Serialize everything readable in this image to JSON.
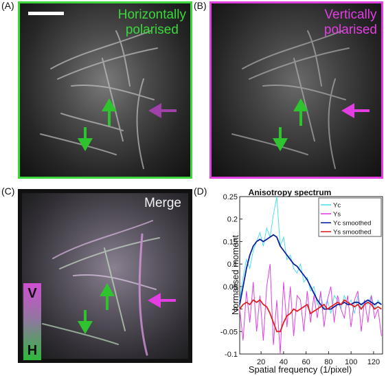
{
  "panels": {
    "a": {
      "label": "(A)",
      "title_line1": "Horizontally",
      "title_line2": "polarised",
      "border_color": "#3bd83b"
    },
    "b": {
      "label": "(B)",
      "title_line1": "Vertically",
      "title_line2": "polarised",
      "border_color": "#e23ee2"
    },
    "c": {
      "label": "(C)",
      "title": "Merge",
      "colorbar_top": "V",
      "colorbar_bottom": "H"
    },
    "d": {
      "label": "(D)"
    }
  },
  "colors": {
    "green_arrow": "#2fc42f",
    "magenta_arrow": "#e23ee2",
    "purple_arrow": "#a040a8"
  },
  "chart_data": {
    "type": "line",
    "title": "Anisotropy spectrum",
    "xlabel": "Spatial frequency (1/pixel)",
    "ylabel": "Normalised moment",
    "xlim": [
      1,
      128
    ],
    "ylim": [
      -0.1,
      0.25
    ],
    "xticks": [
      20,
      40,
      60,
      80,
      100,
      120
    ],
    "yticks": [
      -0.1,
      -0.05,
      0,
      0.05,
      0.1,
      0.15,
      0.2,
      0.25
    ],
    "legend_position": "top-right",
    "series": [
      {
        "name": "Yc",
        "color": "#4de0f0",
        "x": [
          1,
          4,
          7,
          10,
          13,
          16,
          19,
          22,
          25,
          28,
          31,
          34,
          37,
          40,
          43,
          46,
          49,
          52,
          55,
          58,
          61,
          64,
          67,
          70,
          73,
          76,
          79,
          82,
          85,
          88,
          91,
          94,
          97,
          100,
          103,
          106,
          109,
          112,
          115,
          118,
          121,
          124,
          127
        ],
        "y": [
          0.02,
          0.07,
          0.11,
          0.09,
          0.13,
          0.15,
          0.17,
          0.14,
          0.18,
          0.16,
          0.21,
          0.25,
          0.14,
          0.16,
          0.11,
          0.12,
          0.09,
          0.08,
          0.1,
          0.06,
          0.07,
          0.04,
          0.05,
          0.01,
          0.03,
          0.0,
          0.02,
          -0.01,
          0.03,
          0.02,
          0.0,
          0.03,
          0.01,
          0.02,
          -0.01,
          0.03,
          0.0,
          0.02,
          0.01,
          0.03,
          0.0,
          0.02,
          0.01
        ]
      },
      {
        "name": "Ys",
        "color": "#e040e0",
        "x": [
          1,
          4,
          7,
          10,
          13,
          16,
          19,
          22,
          25,
          28,
          31,
          34,
          37,
          40,
          43,
          46,
          49,
          52,
          55,
          58,
          61,
          64,
          67,
          70,
          73,
          76,
          79,
          82,
          85,
          88,
          91,
          94,
          97,
          100,
          103,
          106,
          109,
          112,
          115,
          118,
          121,
          124,
          127
        ],
        "y": [
          0.0,
          -0.07,
          0.04,
          -0.03,
          0.06,
          -0.05,
          0.03,
          -0.07,
          0.05,
          0.1,
          -0.08,
          0.02,
          -0.1,
          0.06,
          -0.04,
          0.05,
          -0.06,
          0.03,
          0.02,
          -0.05,
          0.04,
          -0.03,
          0.03,
          -0.02,
          0.04,
          -0.04,
          0.02,
          0.05,
          -0.03,
          0.03,
          0.0,
          -0.02,
          0.03,
          -0.04,
          0.02,
          0.04,
          -0.05,
          0.02,
          -0.03,
          0.03,
          -0.02,
          0.0,
          -0.06
        ]
      },
      {
        "name": "Yc smoothed",
        "color": "#0a1f9c",
        "x": [
          1,
          4,
          7,
          10,
          13,
          16,
          19,
          22,
          25,
          28,
          31,
          34,
          37,
          40,
          43,
          46,
          49,
          52,
          55,
          58,
          61,
          64,
          67,
          70,
          73,
          76,
          79,
          82,
          85,
          88,
          91,
          94,
          97,
          100,
          103,
          106,
          109,
          112,
          115,
          118,
          121,
          124,
          127
        ],
        "y": [
          0.01,
          0.05,
          0.09,
          0.12,
          0.14,
          0.15,
          0.155,
          0.15,
          0.155,
          0.16,
          0.165,
          0.16,
          0.14,
          0.13,
          0.12,
          0.11,
          0.1,
          0.095,
          0.085,
          0.075,
          0.065,
          0.05,
          0.035,
          0.02,
          0.01,
          0.0,
          0.0,
          0.0,
          0.005,
          0.01,
          0.01,
          0.015,
          0.01,
          0.01,
          0.015,
          0.015,
          0.01,
          0.015,
          0.02,
          0.015,
          0.01,
          0.015,
          0.01
        ]
      },
      {
        "name": "Ys smoothed",
        "color": "#e02020",
        "x": [
          1,
          4,
          7,
          10,
          13,
          16,
          19,
          22,
          25,
          28,
          31,
          34,
          37,
          40,
          43,
          46,
          49,
          52,
          55,
          58,
          61,
          64,
          67,
          70,
          73,
          76,
          79,
          82,
          85,
          88,
          91,
          94,
          97,
          100,
          103,
          106,
          109,
          112,
          115,
          118,
          121,
          124,
          127
        ],
        "y": [
          0.0,
          0.01,
          0.015,
          0.01,
          0.02,
          0.015,
          0.02,
          0.01,
          0.005,
          -0.01,
          -0.03,
          -0.05,
          -0.05,
          -0.03,
          -0.015,
          -0.01,
          0.0,
          -0.005,
          0.0,
          0.005,
          0.01,
          -0.01,
          -0.005,
          0.0,
          0.005,
          0.01,
          0.0,
          0.005,
          0.01,
          0.015,
          0.01,
          0.02,
          0.015,
          0.01,
          0.005,
          0.01,
          0.0,
          0.01,
          0.015,
          0.01,
          0.0,
          0.005,
          0.0
        ]
      }
    ]
  }
}
